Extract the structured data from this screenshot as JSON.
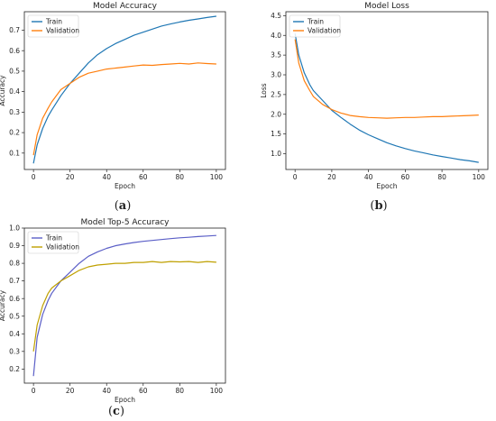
{
  "colors": {
    "train": "#1f77b4",
    "validation": "#ff7f0e",
    "train_c": "#5b5fc7",
    "validation_c": "#bfa000"
  },
  "panels": [
    {
      "label_open": "(",
      "label_letter": "a",
      "label_close": ")"
    },
    {
      "label_open": "(",
      "label_letter": "b",
      "label_close": ")"
    },
    {
      "label_open": "(",
      "label_letter": "c",
      "label_close": ")"
    }
  ],
  "chart_data": [
    {
      "type": "line",
      "title": "Model Accuracy",
      "xlabel": "Epoch",
      "ylabel": "Accuracy",
      "xlim": [
        -5,
        105
      ],
      "ylim": [
        0.02,
        0.79
      ],
      "xticks": [
        0,
        20,
        40,
        60,
        80,
        100
      ],
      "yticks": [
        0.1,
        0.2,
        0.3,
        0.4,
        0.5,
        0.6,
        0.7
      ],
      "legend": "upper-left",
      "grid": false,
      "series": [
        {
          "name": "Train",
          "color": "train",
          "x": [
            0,
            2,
            5,
            8,
            10,
            15,
            20,
            25,
            30,
            35,
            40,
            45,
            50,
            55,
            60,
            65,
            70,
            75,
            80,
            85,
            90,
            95,
            100
          ],
          "y": [
            0.05,
            0.14,
            0.22,
            0.28,
            0.31,
            0.38,
            0.44,
            0.49,
            0.54,
            0.58,
            0.61,
            0.635,
            0.655,
            0.675,
            0.69,
            0.705,
            0.72,
            0.73,
            0.74,
            0.748,
            0.755,
            0.762,
            0.768
          ]
        },
        {
          "name": "Validation",
          "color": "validation",
          "x": [
            0,
            2,
            5,
            8,
            10,
            15,
            20,
            25,
            30,
            35,
            40,
            45,
            50,
            55,
            60,
            65,
            70,
            75,
            80,
            85,
            90,
            95,
            100
          ],
          "y": [
            0.09,
            0.19,
            0.27,
            0.32,
            0.35,
            0.41,
            0.44,
            0.47,
            0.49,
            0.5,
            0.51,
            0.515,
            0.52,
            0.525,
            0.53,
            0.528,
            0.532,
            0.535,
            0.538,
            0.535,
            0.54,
            0.537,
            0.535
          ]
        }
      ]
    },
    {
      "type": "line",
      "title": "Model Loss",
      "xlabel": "Epoch",
      "ylabel": "Loss",
      "xlim": [
        -5,
        105
      ],
      "ylim": [
        0.6,
        4.6
      ],
      "xticks": [
        0,
        20,
        40,
        60,
        80,
        100
      ],
      "yticks": [
        1.0,
        1.5,
        2.0,
        2.5,
        3.0,
        3.5,
        4.0,
        4.5
      ],
      "legend": "upper-left",
      "grid": false,
      "series": [
        {
          "name": "Train",
          "color": "train",
          "x": [
            0,
            2,
            5,
            8,
            10,
            15,
            20,
            25,
            30,
            35,
            40,
            45,
            50,
            55,
            60,
            65,
            70,
            75,
            80,
            85,
            90,
            95,
            100
          ],
          "y": [
            4.05,
            3.5,
            3.05,
            2.75,
            2.6,
            2.35,
            2.1,
            1.92,
            1.75,
            1.6,
            1.48,
            1.38,
            1.28,
            1.2,
            1.13,
            1.07,
            1.02,
            0.97,
            0.93,
            0.89,
            0.85,
            0.82,
            0.78
          ]
        },
        {
          "name": "Validation",
          "color": "validation",
          "x": [
            0,
            2,
            5,
            8,
            10,
            15,
            20,
            25,
            30,
            35,
            40,
            45,
            50,
            55,
            60,
            65,
            70,
            75,
            80,
            85,
            90,
            95,
            100
          ],
          "y": [
            3.9,
            3.3,
            2.85,
            2.6,
            2.45,
            2.25,
            2.12,
            2.03,
            1.97,
            1.94,
            1.92,
            1.91,
            1.9,
            1.91,
            1.92,
            1.92,
            1.93,
            1.94,
            1.94,
            1.95,
            1.96,
            1.97,
            1.98
          ]
        }
      ]
    },
    {
      "type": "line",
      "title": "Model Top-5 Accuracy",
      "xlabel": "Epoch",
      "ylabel": "Accuracy",
      "xlim": [
        -5,
        105
      ],
      "ylim": [
        0.12,
        1.0
      ],
      "xticks": [
        0,
        20,
        40,
        60,
        80,
        100
      ],
      "yticks": [
        0.2,
        0.3,
        0.4,
        0.5,
        0.6,
        0.7,
        0.8,
        0.9,
        1.0
      ],
      "legend": "upper-left",
      "grid": false,
      "series": [
        {
          "name": "Train",
          "color": "train_c",
          "x": [
            0,
            2,
            5,
            8,
            10,
            15,
            20,
            25,
            30,
            35,
            40,
            45,
            50,
            55,
            60,
            65,
            70,
            75,
            80,
            85,
            90,
            95,
            100
          ],
          "y": [
            0.16,
            0.38,
            0.51,
            0.59,
            0.63,
            0.7,
            0.75,
            0.8,
            0.84,
            0.865,
            0.885,
            0.9,
            0.91,
            0.918,
            0.925,
            0.93,
            0.935,
            0.94,
            0.945,
            0.948,
            0.952,
            0.955,
            0.958
          ]
        },
        {
          "name": "Validation",
          "color": "validation_c",
          "x": [
            0,
            2,
            5,
            8,
            10,
            15,
            20,
            25,
            30,
            35,
            40,
            45,
            50,
            55,
            60,
            65,
            70,
            75,
            80,
            85,
            90,
            95,
            100
          ],
          "y": [
            0.3,
            0.45,
            0.56,
            0.63,
            0.66,
            0.7,
            0.73,
            0.76,
            0.78,
            0.79,
            0.795,
            0.8,
            0.8,
            0.805,
            0.805,
            0.81,
            0.805,
            0.81,
            0.808,
            0.81,
            0.805,
            0.81,
            0.806
          ]
        }
      ]
    }
  ]
}
